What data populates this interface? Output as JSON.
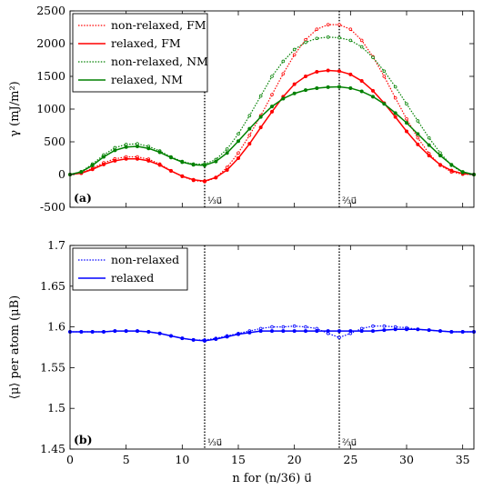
{
  "chart_data": [
    {
      "type": "line",
      "panel_label": "(a)",
      "ylabel": "γ (mJ/m²)",
      "xlim": [
        0,
        36
      ],
      "ylim": [
        -500,
        2500
      ],
      "yticks": [
        -500,
        0,
        500,
        1000,
        1500,
        2000,
        2500
      ],
      "grid": false,
      "legend_position": "top-left",
      "vlines": [
        {
          "x": 12,
          "label": "⅓u⃗"
        },
        {
          "x": 24,
          "label": "⅔u⃗"
        }
      ],
      "series": [
        {
          "name": "non-relaxed, FM",
          "color": "#ff0000",
          "style": "dotted",
          "x": [
            0,
            1,
            2,
            3,
            4,
            5,
            6,
            7,
            8,
            9,
            10,
            11,
            12,
            13,
            14,
            15,
            16,
            17,
            18,
            19,
            20,
            21,
            22,
            23,
            24,
            25,
            26,
            27,
            28,
            29,
            30,
            31,
            32,
            33,
            34,
            35,
            36
          ],
          "y": [
            0,
            25,
            95,
            180,
            240,
            270,
            270,
            235,
            160,
            60,
            -30,
            -90,
            -110,
            -50,
            110,
            330,
            600,
            900,
            1220,
            1540,
            1830,
            2060,
            2220,
            2290,
            2290,
            2220,
            2050,
            1800,
            1500,
            1170,
            850,
            560,
            320,
            140,
            40,
            5,
            0
          ]
        },
        {
          "name": "relaxed, FM",
          "color": "#ff0000",
          "style": "solid",
          "x": [
            0,
            1,
            2,
            3,
            4,
            5,
            6,
            7,
            8,
            9,
            10,
            11,
            12,
            13,
            14,
            15,
            16,
            17,
            18,
            19,
            20,
            21,
            22,
            23,
            24,
            25,
            26,
            27,
            28,
            29,
            30,
            31,
            32,
            33,
            34,
            35,
            36
          ],
          "y": [
            0,
            20,
            80,
            155,
            210,
            240,
            240,
            210,
            145,
            55,
            -25,
            -80,
            -100,
            -45,
            70,
            250,
            470,
            720,
            960,
            1190,
            1380,
            1500,
            1570,
            1590,
            1580,
            1530,
            1430,
            1280,
            1090,
            880,
            660,
            460,
            290,
            150,
            60,
            15,
            0
          ]
        },
        {
          "name": "non-relaxed, NM",
          "color": "#008000",
          "style": "dotted",
          "x": [
            0,
            1,
            2,
            3,
            4,
            5,
            6,
            7,
            8,
            9,
            10,
            11,
            12,
            13,
            14,
            15,
            16,
            17,
            18,
            19,
            20,
            21,
            22,
            23,
            24,
            25,
            26,
            27,
            28,
            29,
            30,
            31,
            32,
            33,
            34,
            35,
            36
          ],
          "y": [
            0,
            45,
            160,
            300,
            410,
            460,
            470,
            430,
            360,
            270,
            200,
            160,
            160,
            230,
            390,
            620,
            900,
            1200,
            1500,
            1730,
            1910,
            2020,
            2080,
            2100,
            2090,
            2050,
            1950,
            1790,
            1580,
            1340,
            1080,
            820,
            560,
            330,
            140,
            30,
            0
          ]
        },
        {
          "name": "relaxed, NM",
          "color": "#008000",
          "style": "solid",
          "x": [
            0,
            1,
            2,
            3,
            4,
            5,
            6,
            7,
            8,
            9,
            10,
            11,
            12,
            13,
            14,
            15,
            16,
            17,
            18,
            19,
            20,
            21,
            22,
            23,
            24,
            25,
            26,
            27,
            28,
            29,
            30,
            31,
            32,
            33,
            34,
            35,
            36
          ],
          "y": [
            0,
            40,
            140,
            270,
            370,
            420,
            430,
            400,
            340,
            260,
            190,
            150,
            140,
            200,
            330,
            510,
            700,
            880,
            1040,
            1160,
            1240,
            1290,
            1320,
            1335,
            1340,
            1320,
            1270,
            1190,
            1080,
            940,
            790,
            620,
            450,
            290,
            150,
            40,
            0
          ]
        }
      ]
    },
    {
      "type": "line",
      "panel_label": "(b)",
      "xlabel": "n for (n/36) u⃗",
      "ylabel": "⟨μ⟩ per atom (μB)",
      "xlim": [
        0,
        36
      ],
      "ylim": [
        1.45,
        1.7
      ],
      "xticks": [
        0,
        5,
        10,
        15,
        20,
        25,
        30,
        35
      ],
      "yticks": [
        1.45,
        1.5,
        1.55,
        1.6,
        1.65,
        1.7
      ],
      "grid": false,
      "legend_position": "top-left",
      "vlines": [
        {
          "x": 12,
          "label": "⅓u⃗"
        },
        {
          "x": 24,
          "label": "⅔u⃗"
        }
      ],
      "series": [
        {
          "name": "non-relaxed",
          "color": "#0000ff",
          "style": "dotted",
          "x": [
            0,
            1,
            2,
            3,
            4,
            5,
            6,
            7,
            8,
            9,
            10,
            11,
            12,
            13,
            14,
            15,
            16,
            17,
            18,
            19,
            20,
            21,
            22,
            23,
            24,
            25,
            26,
            27,
            28,
            29,
            30,
            31,
            32,
            33,
            34,
            35,
            36
          ],
          "y": [
            1.594,
            1.594,
            1.594,
            1.594,
            1.595,
            1.595,
            1.595,
            1.594,
            1.592,
            1.589,
            1.586,
            1.584,
            1.584,
            1.586,
            1.589,
            1.592,
            1.595,
            1.598,
            1.6,
            1.6,
            1.601,
            1.6,
            1.598,
            1.592,
            1.587,
            1.592,
            1.598,
            1.601,
            1.601,
            1.6,
            1.599,
            1.597,
            1.596,
            1.595,
            1.594,
            1.594,
            1.594
          ]
        },
        {
          "name": "relaxed",
          "color": "#0000ff",
          "style": "solid",
          "x": [
            0,
            1,
            2,
            3,
            4,
            5,
            6,
            7,
            8,
            9,
            10,
            11,
            12,
            13,
            14,
            15,
            16,
            17,
            18,
            19,
            20,
            21,
            22,
            23,
            24,
            25,
            26,
            27,
            28,
            29,
            30,
            31,
            32,
            33,
            34,
            35,
            36
          ],
          "y": [
            1.594,
            1.594,
            1.594,
            1.594,
            1.595,
            1.595,
            1.595,
            1.594,
            1.592,
            1.589,
            1.586,
            1.584,
            1.583,
            1.585,
            1.588,
            1.591,
            1.593,
            1.595,
            1.595,
            1.595,
            1.595,
            1.595,
            1.595,
            1.595,
            1.595,
            1.595,
            1.595,
            1.595,
            1.596,
            1.597,
            1.597,
            1.597,
            1.596,
            1.595,
            1.594,
            1.594,
            1.594
          ]
        }
      ]
    }
  ]
}
